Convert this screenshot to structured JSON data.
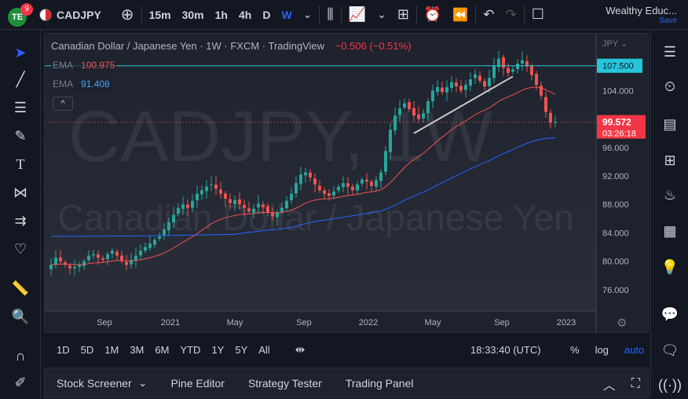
{
  "header": {
    "notification_count": "9",
    "logo_text": "TE",
    "symbol": "CADJPY",
    "timeframes": [
      "15m",
      "30m",
      "1h",
      "4h",
      "D",
      "W"
    ],
    "active_timeframe": "W",
    "account_name": "Wealthy Educ...",
    "save_label": "Save"
  },
  "legend": {
    "symbol_line": "Canadian Dollar / Japanese Yen · 1W · FXCM · TradingView",
    "change": "−0.506 (−0.51%)",
    "ema1_label": "EMA",
    "ema1_value": "100.975",
    "ema2_label": "EMA",
    "ema2_value": "91.408",
    "collapse_label": "^"
  },
  "watermark": {
    "ticker": "CADJPY, 1W",
    "description": "Canadian Dollar / Japanese Yen"
  },
  "price_scale": {
    "currency": "JPY",
    "ticks": [
      "104.000",
      "100.000",
      "96.000",
      "92.000",
      "88.000",
      "84.000",
      "80.000",
      "76.000"
    ],
    "hline_label": "107.500",
    "last_price": "99.572",
    "countdown": "03:26:18"
  },
  "time_axis": {
    "labels": [
      "Sep",
      "2021",
      "May",
      "Sep",
      "2022",
      "May",
      "Sep",
      "2023"
    ]
  },
  "bottom_toolbar": {
    "ranges": [
      "1D",
      "5D",
      "1M",
      "3M",
      "6M",
      "YTD",
      "1Y",
      "5Y",
      "All"
    ],
    "clock": "18:33:40 (UTC)",
    "percent": "%",
    "log": "log",
    "auto": "auto"
  },
  "panels": {
    "items": [
      "Stock Screener",
      "Pine Editor",
      "Strategy Tester",
      "Trading Panel"
    ]
  },
  "colors": {
    "up": "#26a69a",
    "down": "#ef5350",
    "ema_fast": "#ef5350",
    "ema_slow": "#2962ff",
    "hline": "#26c6da",
    "accent": "#2962ff"
  },
  "chart_data": {
    "type": "candlestick",
    "title": "Canadian Dollar / Japanese Yen",
    "ylabel": "JPY",
    "ylim": [
      73,
      112
    ],
    "horizontal_line": 107.5,
    "trendline": {
      "from": [
        "2022-05",
        98.0
      ],
      "to": [
        "2022-10",
        106.0
      ]
    },
    "weekly_close_approx": [
      79.5,
      80.5,
      80.0,
      79.5,
      79.0,
      79.2,
      79.5,
      80.0,
      80.8,
      81.0,
      80.5,
      80.2,
      81.0,
      81.5,
      80.8,
      80.0,
      79.5,
      80.2,
      80.8,
      81.5,
      82.0,
      82.5,
      83.0,
      83.5,
      84.5,
      85.5,
      86.5,
      87.5,
      88.0,
      87.5,
      88.5,
      89.5,
      90.0,
      90.5,
      90.8,
      90.2,
      89.5,
      88.8,
      88.2,
      88.6,
      88.0,
      87.5,
      87.0,
      87.4,
      88.1,
      87.6,
      86.8,
      86.3,
      86.9,
      87.5,
      88.5,
      89.5,
      91.0,
      92.2,
      92.5,
      91.8,
      90.8,
      90.0,
      89.5,
      89.2,
      89.8,
      90.5,
      91.0,
      90.5,
      90.0,
      90.8,
      91.5,
      91.2,
      90.6,
      91.4,
      92.5,
      95.5,
      98.5,
      100.5,
      101.5,
      102.2,
      101.4,
      100.5,
      100.0,
      100.8,
      102.5,
      104.0,
      104.5,
      103.8,
      104.5,
      105.2,
      104.6,
      104.0,
      104.8,
      105.6,
      106.3,
      105.4,
      104.6,
      105.8,
      107.5,
      108.5,
      107.2,
      106.5,
      107.0,
      107.8,
      108.3,
      107.4,
      106.2,
      104.8,
      103.3,
      101.0,
      99.5,
      99.6
    ],
    "ema_fast_last": 100.975,
    "ema_slow_last": 91.408,
    "last_price": 99.572
  }
}
